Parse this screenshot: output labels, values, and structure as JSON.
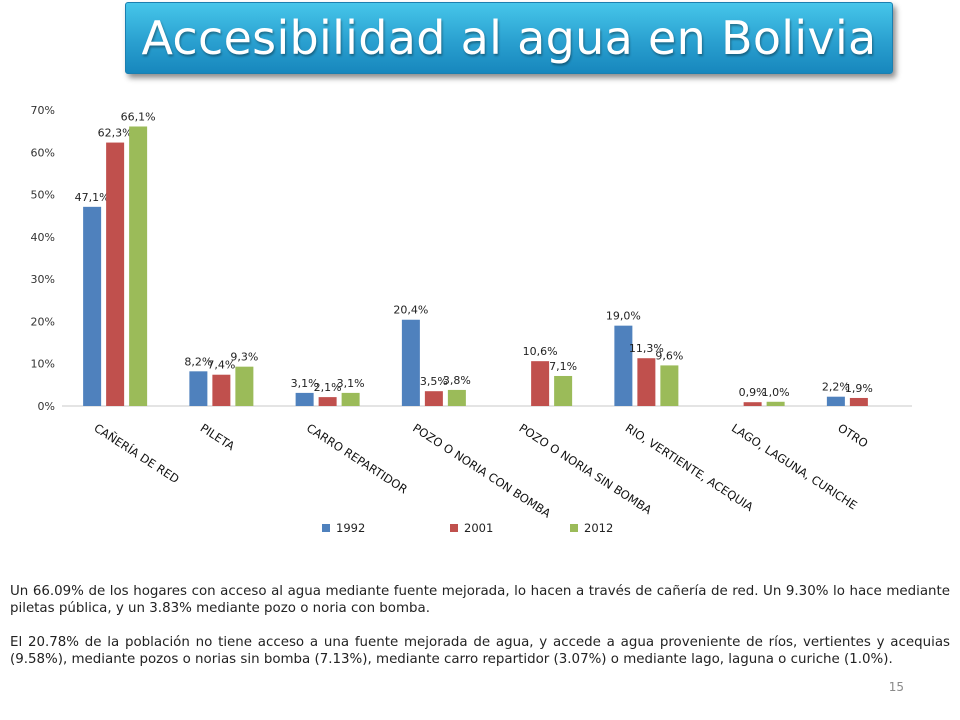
{
  "title": "Accesibilidad al agua en Bolivia",
  "chart_data": {
    "type": "bar",
    "categories": [
      "CAÑERÍA DE RED",
      "PILETA",
      "CARRO REPARTIDOR",
      "POZO O NORIA CON BOMBA",
      "POZO O NORIA SIN BOMBA",
      "RIO, VERTIENTE, ACEQUIA",
      "LAGO, LAGUNA, CURICHE",
      "OTRO"
    ],
    "series": [
      {
        "name": "1992",
        "color": "#4f81bd",
        "values": [
          47.1,
          8.2,
          3.1,
          20.4,
          null,
          19.0,
          null,
          2.2
        ],
        "labels": [
          "47,1%",
          "8,2%",
          "3,1%",
          "20,4%",
          "",
          "19,0%",
          "",
          "2,2%"
        ]
      },
      {
        "name": "2001",
        "color": "#c0504d",
        "values": [
          62.3,
          7.4,
          2.1,
          3.5,
          10.6,
          11.3,
          0.9,
          1.9
        ],
        "labels": [
          "62,3%",
          "7,4%",
          "2,1%",
          "3,5%",
          "10,6%",
          "11,3%",
          "0,9%",
          "1,9%"
        ]
      },
      {
        "name": "2012",
        "color": "#9bbb59",
        "values": [
          66.1,
          9.3,
          3.1,
          3.8,
          7.1,
          9.6,
          1.0,
          null
        ],
        "labels": [
          "66,1%",
          "9,3%",
          "3,1%",
          "3,8%",
          "7,1%",
          "9,6%",
          "1,0%",
          ""
        ]
      }
    ],
    "yticks": [
      "0%",
      "10%",
      "20%",
      "30%",
      "40%",
      "50%",
      "60%",
      "70%"
    ],
    "ylim": [
      0,
      70
    ],
    "grid": false,
    "legend": "bottom"
  },
  "paragraphs": [
    "Un 66.09% de los hogares con acceso al agua mediante fuente mejorada, lo hacen a través de cañería de red. Un 9.30% lo hace mediante piletas pública, y un 3.83% mediante pozo o noria con bomba.",
    "El 20.78% de la población no tiene acceso a una fuente mejorada de agua, y accede a agua proveniente de ríos, vertientes y acequias (9.58%), mediante pozos o norias sin bomba (7.13%), mediante carro repartidor (3.07%) o mediante lago, laguna o curiche (1.0%)."
  ],
  "page_number": "15"
}
